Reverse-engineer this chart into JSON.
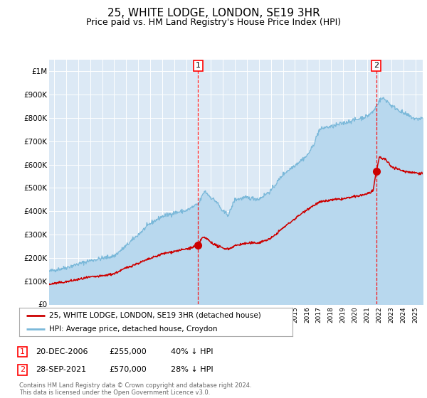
{
  "title": "25, WHITE LODGE, LONDON, SE19 3HR",
  "subtitle": "Price paid vs. HM Land Registry's House Price Index (HPI)",
  "title_fontsize": 11,
  "subtitle_fontsize": 9,
  "background_color": "#ffffff",
  "plot_bg_color": "#dce9f5",
  "grid_color": "#ffffff",
  "hpi_color": "#7ab8d9",
  "hpi_fill_color": "#b8d8ee",
  "price_color": "#cc0000",
  "ylim": [
    0,
    1050000
  ],
  "yticks": [
    0,
    100000,
    200000,
    300000,
    400000,
    500000,
    600000,
    700000,
    800000,
    900000,
    1000000
  ],
  "ytick_labels": [
    "£0",
    "£100K",
    "£200K",
    "£300K",
    "£400K",
    "£500K",
    "£600K",
    "£700K",
    "£800K",
    "£900K",
    "£1M"
  ],
  "legend_label_price": "25, WHITE LODGE, LONDON, SE19 3HR (detached house)",
  "legend_label_hpi": "HPI: Average price, detached house, Croydon",
  "transaction1_date": 2006.97,
  "transaction1_price": 255000,
  "transaction2_date": 2021.745,
  "transaction2_price": 570000,
  "table_row1": [
    "1",
    "20-DEC-2006",
    "£255,000",
    "40% ↓ HPI"
  ],
  "table_row2": [
    "2",
    "28-SEP-2021",
    "£570,000",
    "28% ↓ HPI"
  ],
  "footer": "Contains HM Land Registry data © Crown copyright and database right 2024.\nThis data is licensed under the Open Government Licence v3.0.",
  "xlim_start": 1994.6,
  "xlim_end": 2025.6
}
